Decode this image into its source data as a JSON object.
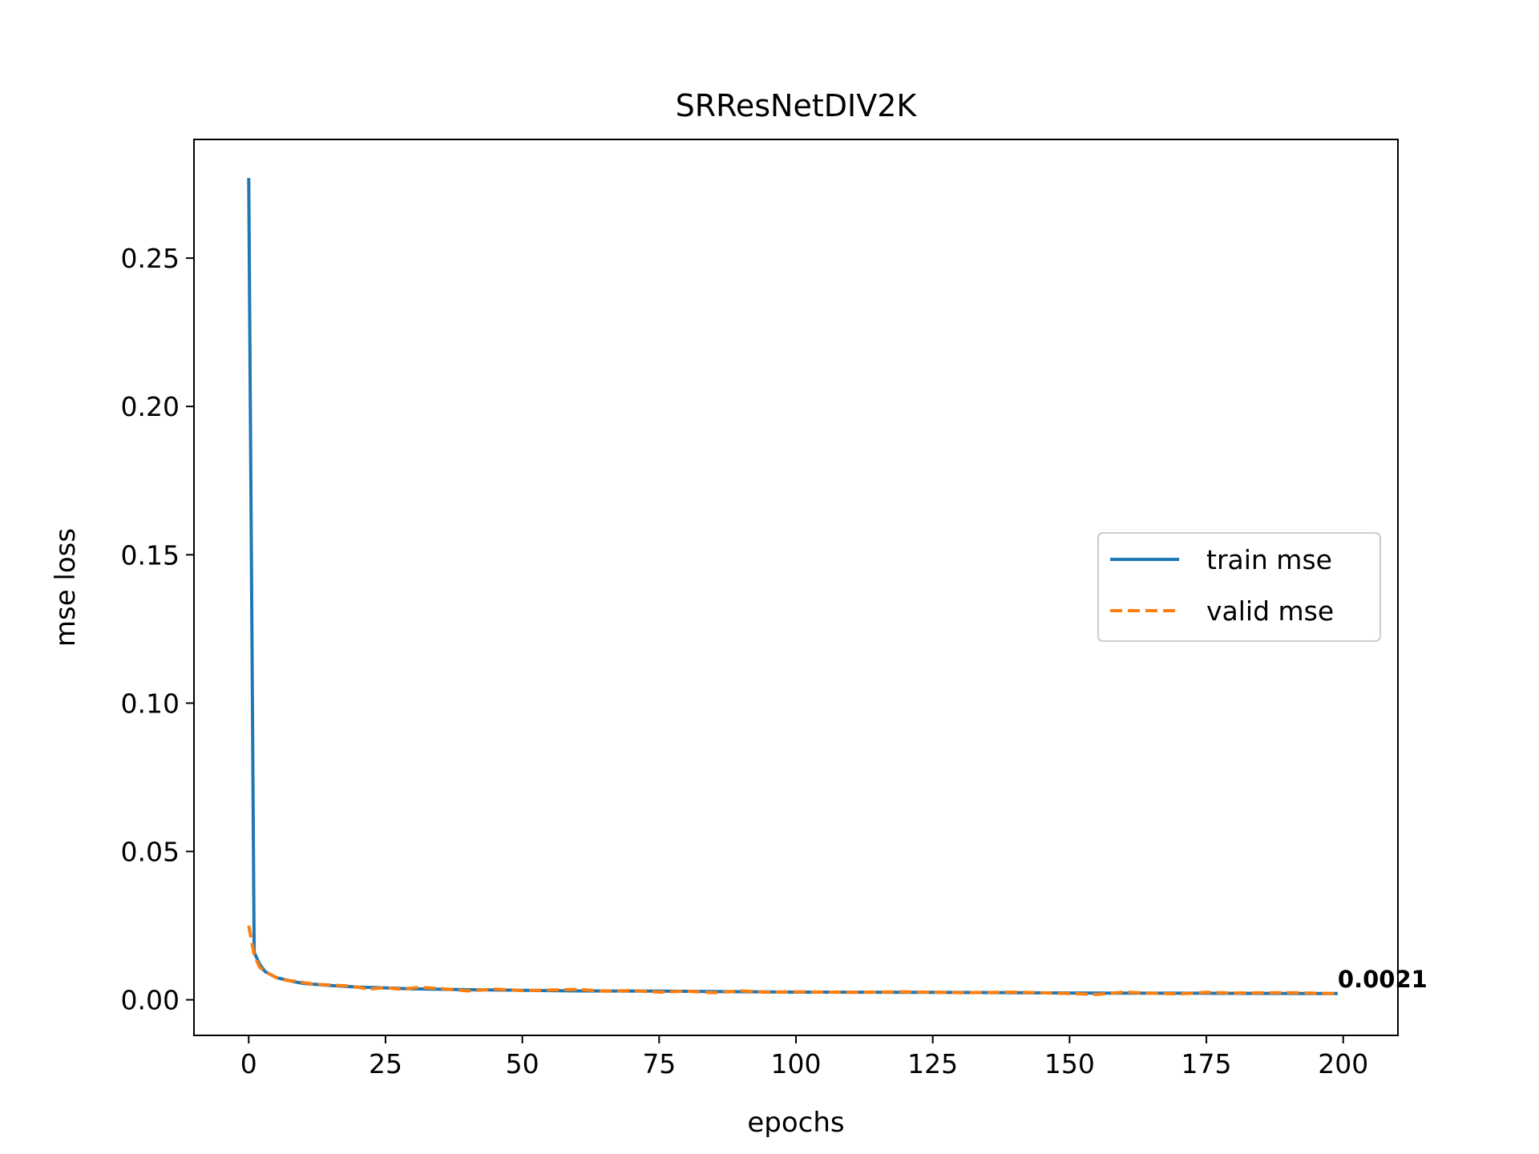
{
  "chart_data": {
    "type": "line",
    "title": "SRResNetDIV2K",
    "xlabel": "epochs",
    "ylabel": "mse loss",
    "xlim": [
      -10,
      210
    ],
    "ylim": [
      -0.012,
      0.29
    ],
    "x_ticks": [
      0,
      25,
      50,
      75,
      100,
      125,
      150,
      175,
      200
    ],
    "x_tick_labels": [
      "0",
      "25",
      "50",
      "75",
      "100",
      "125",
      "150",
      "175",
      "200"
    ],
    "y_ticks": [
      0.0,
      0.05,
      0.1,
      0.15,
      0.2,
      0.25
    ],
    "y_tick_labels": [
      "0.00",
      "0.05",
      "0.10",
      "0.15",
      "0.20",
      "0.25"
    ],
    "grid": false,
    "legend_position": "center-right",
    "annotation": {
      "text": "0.0021",
      "x": 199,
      "y": 0.0021
    },
    "series": [
      {
        "name": "train mse",
        "color": "#1f77b4",
        "style": "solid",
        "points": [
          [
            0,
            0.277
          ],
          [
            1,
            0.016
          ],
          [
            2,
            0.012
          ],
          [
            3,
            0.0095
          ],
          [
            5,
            0.0075
          ],
          [
            8,
            0.0062
          ],
          [
            10,
            0.0055
          ],
          [
            15,
            0.0048
          ],
          [
            20,
            0.0043
          ],
          [
            25,
            0.004
          ],
          [
            30,
            0.0037
          ],
          [
            40,
            0.0034
          ],
          [
            50,
            0.0032
          ],
          [
            60,
            0.003
          ],
          [
            75,
            0.0029
          ],
          [
            100,
            0.0026
          ],
          [
            125,
            0.0025
          ],
          [
            150,
            0.0023
          ],
          [
            175,
            0.0022
          ],
          [
            199,
            0.0021
          ]
        ]
      },
      {
        "name": "valid mse",
        "color": "#ff7f0e",
        "style": "dashed",
        "points": [
          [
            0,
            0.025
          ],
          [
            1,
            0.015
          ],
          [
            2,
            0.011
          ],
          [
            3,
            0.0095
          ],
          [
            5,
            0.0075
          ],
          [
            7,
            0.0065
          ],
          [
            9,
            0.0062
          ],
          [
            10,
            0.0058
          ],
          [
            12,
            0.0052
          ],
          [
            15,
            0.005
          ],
          [
            18,
            0.0047
          ],
          [
            20,
            0.0042
          ],
          [
            22,
            0.0036
          ],
          [
            25,
            0.0041
          ],
          [
            28,
            0.0035
          ],
          [
            31,
            0.0042
          ],
          [
            35,
            0.0038
          ],
          [
            40,
            0.003
          ],
          [
            45,
            0.0036
          ],
          [
            50,
            0.0031
          ],
          [
            55,
            0.0033
          ],
          [
            60,
            0.0035
          ],
          [
            65,
            0.0029
          ],
          [
            70,
            0.0031
          ],
          [
            75,
            0.0026
          ],
          [
            80,
            0.0029
          ],
          [
            85,
            0.0024
          ],
          [
            90,
            0.003
          ],
          [
            95,
            0.0025
          ],
          [
            100,
            0.0027
          ],
          [
            110,
            0.0025
          ],
          [
            120,
            0.0027
          ],
          [
            130,
            0.0024
          ],
          [
            140,
            0.0026
          ],
          [
            150,
            0.0021
          ],
          [
            155,
            0.0018
          ],
          [
            160,
            0.0026
          ],
          [
            165,
            0.0022
          ],
          [
            170,
            0.002
          ],
          [
            175,
            0.0025
          ],
          [
            180,
            0.0023
          ],
          [
            190,
            0.0024
          ],
          [
            199,
            0.0021
          ]
        ]
      }
    ]
  }
}
